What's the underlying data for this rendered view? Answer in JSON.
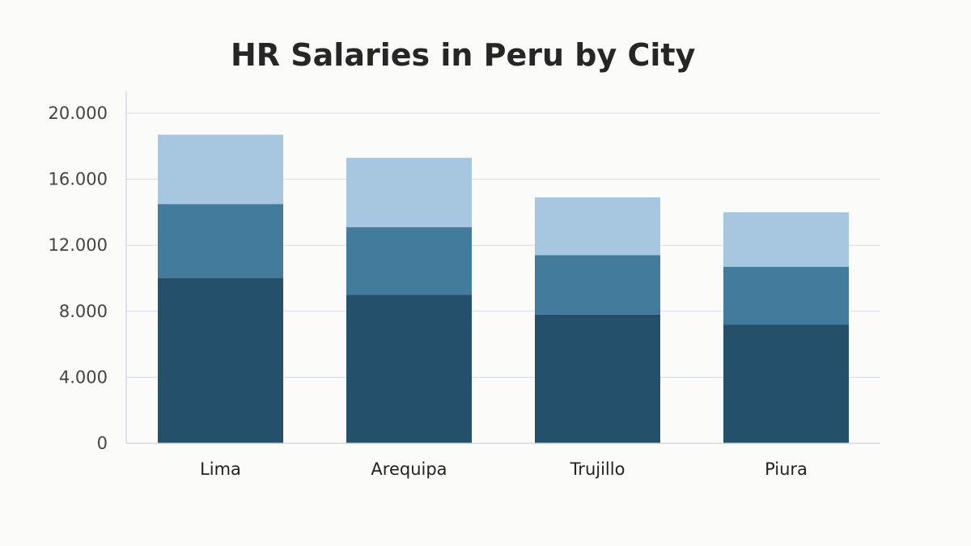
{
  "chart_data": {
    "type": "bar",
    "stacked": true,
    "title": "HR Salaries in Peru by City",
    "xlabel": "",
    "ylabel": "",
    "categories": [
      "Lima",
      "Arequipa",
      "Trujillo",
      "Piura"
    ],
    "series": [
      {
        "values": [
          10000,
          9000,
          7800,
          7200
        ],
        "color": "#24506c"
      },
      {
        "values": [
          4500,
          4100,
          3600,
          3500
        ],
        "color": "#437b9c"
      },
      {
        "values": [
          4200,
          4200,
          3500,
          3300
        ],
        "color": "#a7c7e0"
      }
    ],
    "ylim": [
      0,
      20000
    ],
    "yticks": [
      0,
      4000,
      8000,
      12000,
      16000,
      20000
    ],
    "ytick_labels": [
      "0",
      "4.000",
      "8.000",
      "12.000",
      "16.000",
      "20.000"
    ],
    "grid": true,
    "legend": "none"
  }
}
